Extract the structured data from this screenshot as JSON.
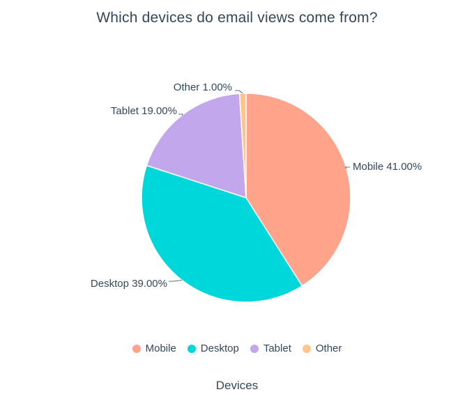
{
  "chart_data": {
    "type": "pie",
    "title": "Which devices do email views come from?",
    "xlabel": "Devices",
    "slices": [
      {
        "label": "Mobile",
        "value": 41,
        "display": "41.00%",
        "color": "#ffa38a"
      },
      {
        "label": "Desktop",
        "value": 39,
        "display": "39.00%",
        "color": "#00d7db"
      },
      {
        "label": "Tablet",
        "value": 19,
        "display": "19.00%",
        "color": "#c2a7ec"
      },
      {
        "label": "Other",
        "value": 1,
        "display": "1.00%",
        "color": "#ffc58a"
      }
    ],
    "legend_position": "bottom"
  }
}
